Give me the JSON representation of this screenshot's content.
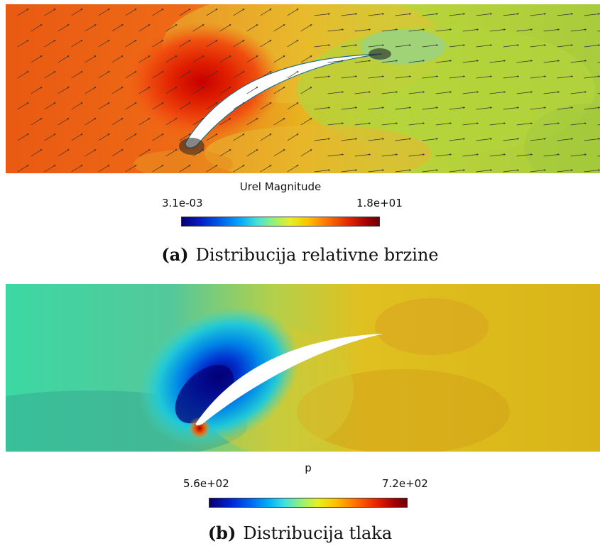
{
  "figure_a": {
    "colorbar": {
      "title": "Urel Magnitude",
      "min_label": "3.1e-03",
      "max_label": "1.8e+01"
    },
    "caption": {
      "label": "(a)",
      "text": "Distribucija relativne brzine"
    }
  },
  "figure_b": {
    "colorbar": {
      "title": "p",
      "min_label": "5.6e+02",
      "max_label": "7.2e+02"
    },
    "caption": {
      "label": "(b)",
      "text": "Distribucija tlaka"
    }
  },
  "colormap": [
    "#08006e",
    "#0020d0",
    "#0060f0",
    "#00b0f8",
    "#40e0e0",
    "#90f080",
    "#e8f020",
    "#ffc000",
    "#ff7000",
    "#e82000",
    "#a00000",
    "#6a0000"
  ]
}
